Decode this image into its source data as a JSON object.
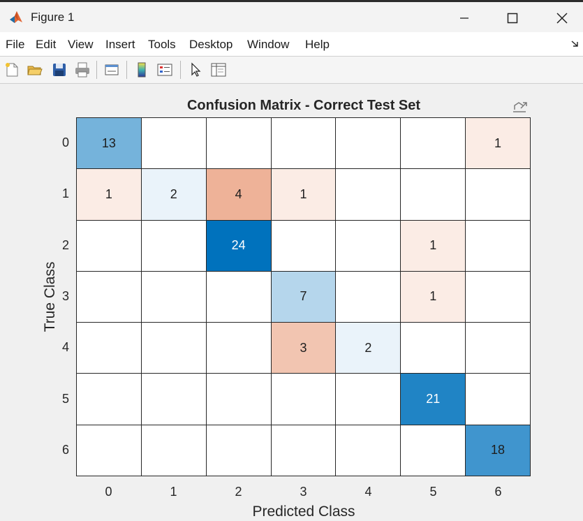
{
  "window": {
    "title": "Figure 1",
    "icons": {
      "app": "matlab-logo-icon",
      "minimize": "minimize-icon",
      "maximize": "maximize-icon",
      "close": "close-icon"
    }
  },
  "menubar": {
    "items": [
      "File",
      "Edit",
      "View",
      "Insert",
      "Tools",
      "Desktop",
      "Window",
      "Help"
    ]
  },
  "toolbar": {
    "buttons": [
      "new-figure-icon",
      "open-file-icon",
      "save-icon",
      "print-icon",
      "link-plot-icon",
      "colorbar-icon",
      "legend-icon",
      "select-pointer-icon",
      "property-inspector-icon"
    ]
  },
  "chart_data": {
    "type": "heatmap",
    "title": "Confusion Matrix - Correct Test Set",
    "xlabel": "Predicted Class",
    "ylabel": "True Class",
    "x_categories": [
      "0",
      "1",
      "2",
      "3",
      "4",
      "5",
      "6"
    ],
    "y_categories": [
      "0",
      "1",
      "2",
      "3",
      "4",
      "5",
      "6"
    ],
    "matrix": [
      [
        13,
        0,
        0,
        0,
        0,
        0,
        1
      ],
      [
        1,
        2,
        4,
        1,
        0,
        0,
        0
      ],
      [
        0,
        0,
        24,
        0,
        0,
        1,
        0
      ],
      [
        0,
        0,
        0,
        7,
        0,
        1,
        0
      ],
      [
        0,
        0,
        0,
        3,
        2,
        0,
        0
      ],
      [
        0,
        0,
        0,
        0,
        0,
        21,
        0
      ],
      [
        0,
        0,
        0,
        0,
        0,
        0,
        18
      ]
    ],
    "zero_cells_shown_blank": true,
    "colors": {
      "diagonal_max": "#0072bd",
      "diagonal_min": "#ffffff",
      "offdiag_max": "#d95319",
      "offdiag_min": "#ffffff",
      "grid_line": "#262626"
    }
  }
}
